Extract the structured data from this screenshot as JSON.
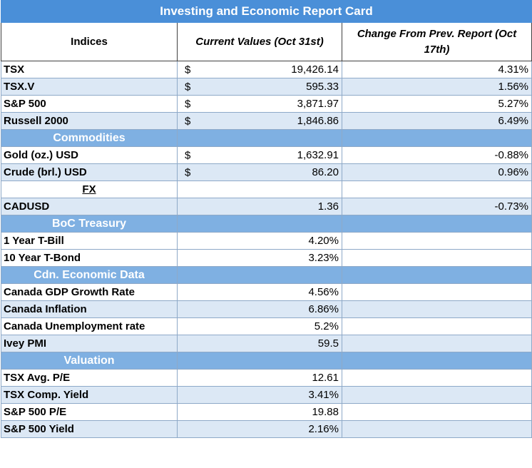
{
  "title": "Investing and Economic Report Card",
  "headers": {
    "col1": "Indices",
    "col2": "Current Values (Oct 31st)",
    "col3": "Change From Prev. Report (Oct 17th)"
  },
  "rows": [
    {
      "kind": "data",
      "shade": "white",
      "name": "TSX",
      "currency": "$",
      "value": "19,426.14",
      "change": "4.31%"
    },
    {
      "kind": "data",
      "shade": "blue",
      "name": "TSX.V",
      "currency": "$",
      "value": "595.33",
      "change": "1.56%"
    },
    {
      "kind": "data",
      "shade": "white",
      "name": "S&P 500",
      "currency": "$",
      "value": "3,871.97",
      "change": "5.27%"
    },
    {
      "kind": "data",
      "shade": "blue",
      "name": "Russell 2000",
      "currency": "$",
      "value": "1,846.86",
      "change": "6.49%"
    },
    {
      "kind": "section",
      "name": "Commodities"
    },
    {
      "kind": "data",
      "shade": "white",
      "name": "Gold (oz.) USD",
      "currency": "$",
      "value": "1,632.91",
      "change": "-0.88%"
    },
    {
      "kind": "data",
      "shade": "blue",
      "name": "Crude (brl.) USD",
      "currency": "$",
      "value": "86.20",
      "change": "0.96%"
    },
    {
      "kind": "fx",
      "shade": "white",
      "name": "FX"
    },
    {
      "kind": "data",
      "shade": "blue",
      "name": "CADUSD",
      "currency": "",
      "value": "1.36",
      "change": "-0.73%"
    },
    {
      "kind": "section",
      "name": "BoC Treasury"
    },
    {
      "kind": "data",
      "shade": "white",
      "name": "1 Year T-Bill",
      "currency": "",
      "value": "4.20%",
      "change": ""
    },
    {
      "kind": "data",
      "shade": "white",
      "name": "10 Year T-Bond",
      "currency": "",
      "value": "3.23%",
      "change": ""
    },
    {
      "kind": "section",
      "name": "Cdn. Economic Data"
    },
    {
      "kind": "data",
      "shade": "white",
      "name": "Canada GDP Growth Rate",
      "currency": "",
      "value": "4.56%",
      "change": ""
    },
    {
      "kind": "data",
      "shade": "blue",
      "name": "Canada Inflation",
      "currency": "",
      "value": "6.86%",
      "change": ""
    },
    {
      "kind": "data",
      "shade": "white",
      "name": "Canada Unemployment rate",
      "currency": "",
      "value": "5.2%",
      "change": ""
    },
    {
      "kind": "data",
      "shade": "blue",
      "name": "Ivey PMI",
      "currency": "",
      "value": "59.5",
      "change": ""
    },
    {
      "kind": "section",
      "name": "Valuation"
    },
    {
      "kind": "data",
      "shade": "white",
      "name": "TSX Avg. P/E",
      "currency": "",
      "value": "12.61",
      "change": ""
    },
    {
      "kind": "data",
      "shade": "blue",
      "name": "TSX Comp. Yield",
      "currency": "",
      "value": "3.41%",
      "change": ""
    },
    {
      "kind": "data",
      "shade": "white",
      "name": "S&P 500 P/E",
      "currency": "",
      "value": "19.88",
      "change": ""
    },
    {
      "kind": "data",
      "shade": "blue",
      "name": "S&P 500 Yield",
      "currency": "",
      "value": "2.16%",
      "change": ""
    }
  ]
}
